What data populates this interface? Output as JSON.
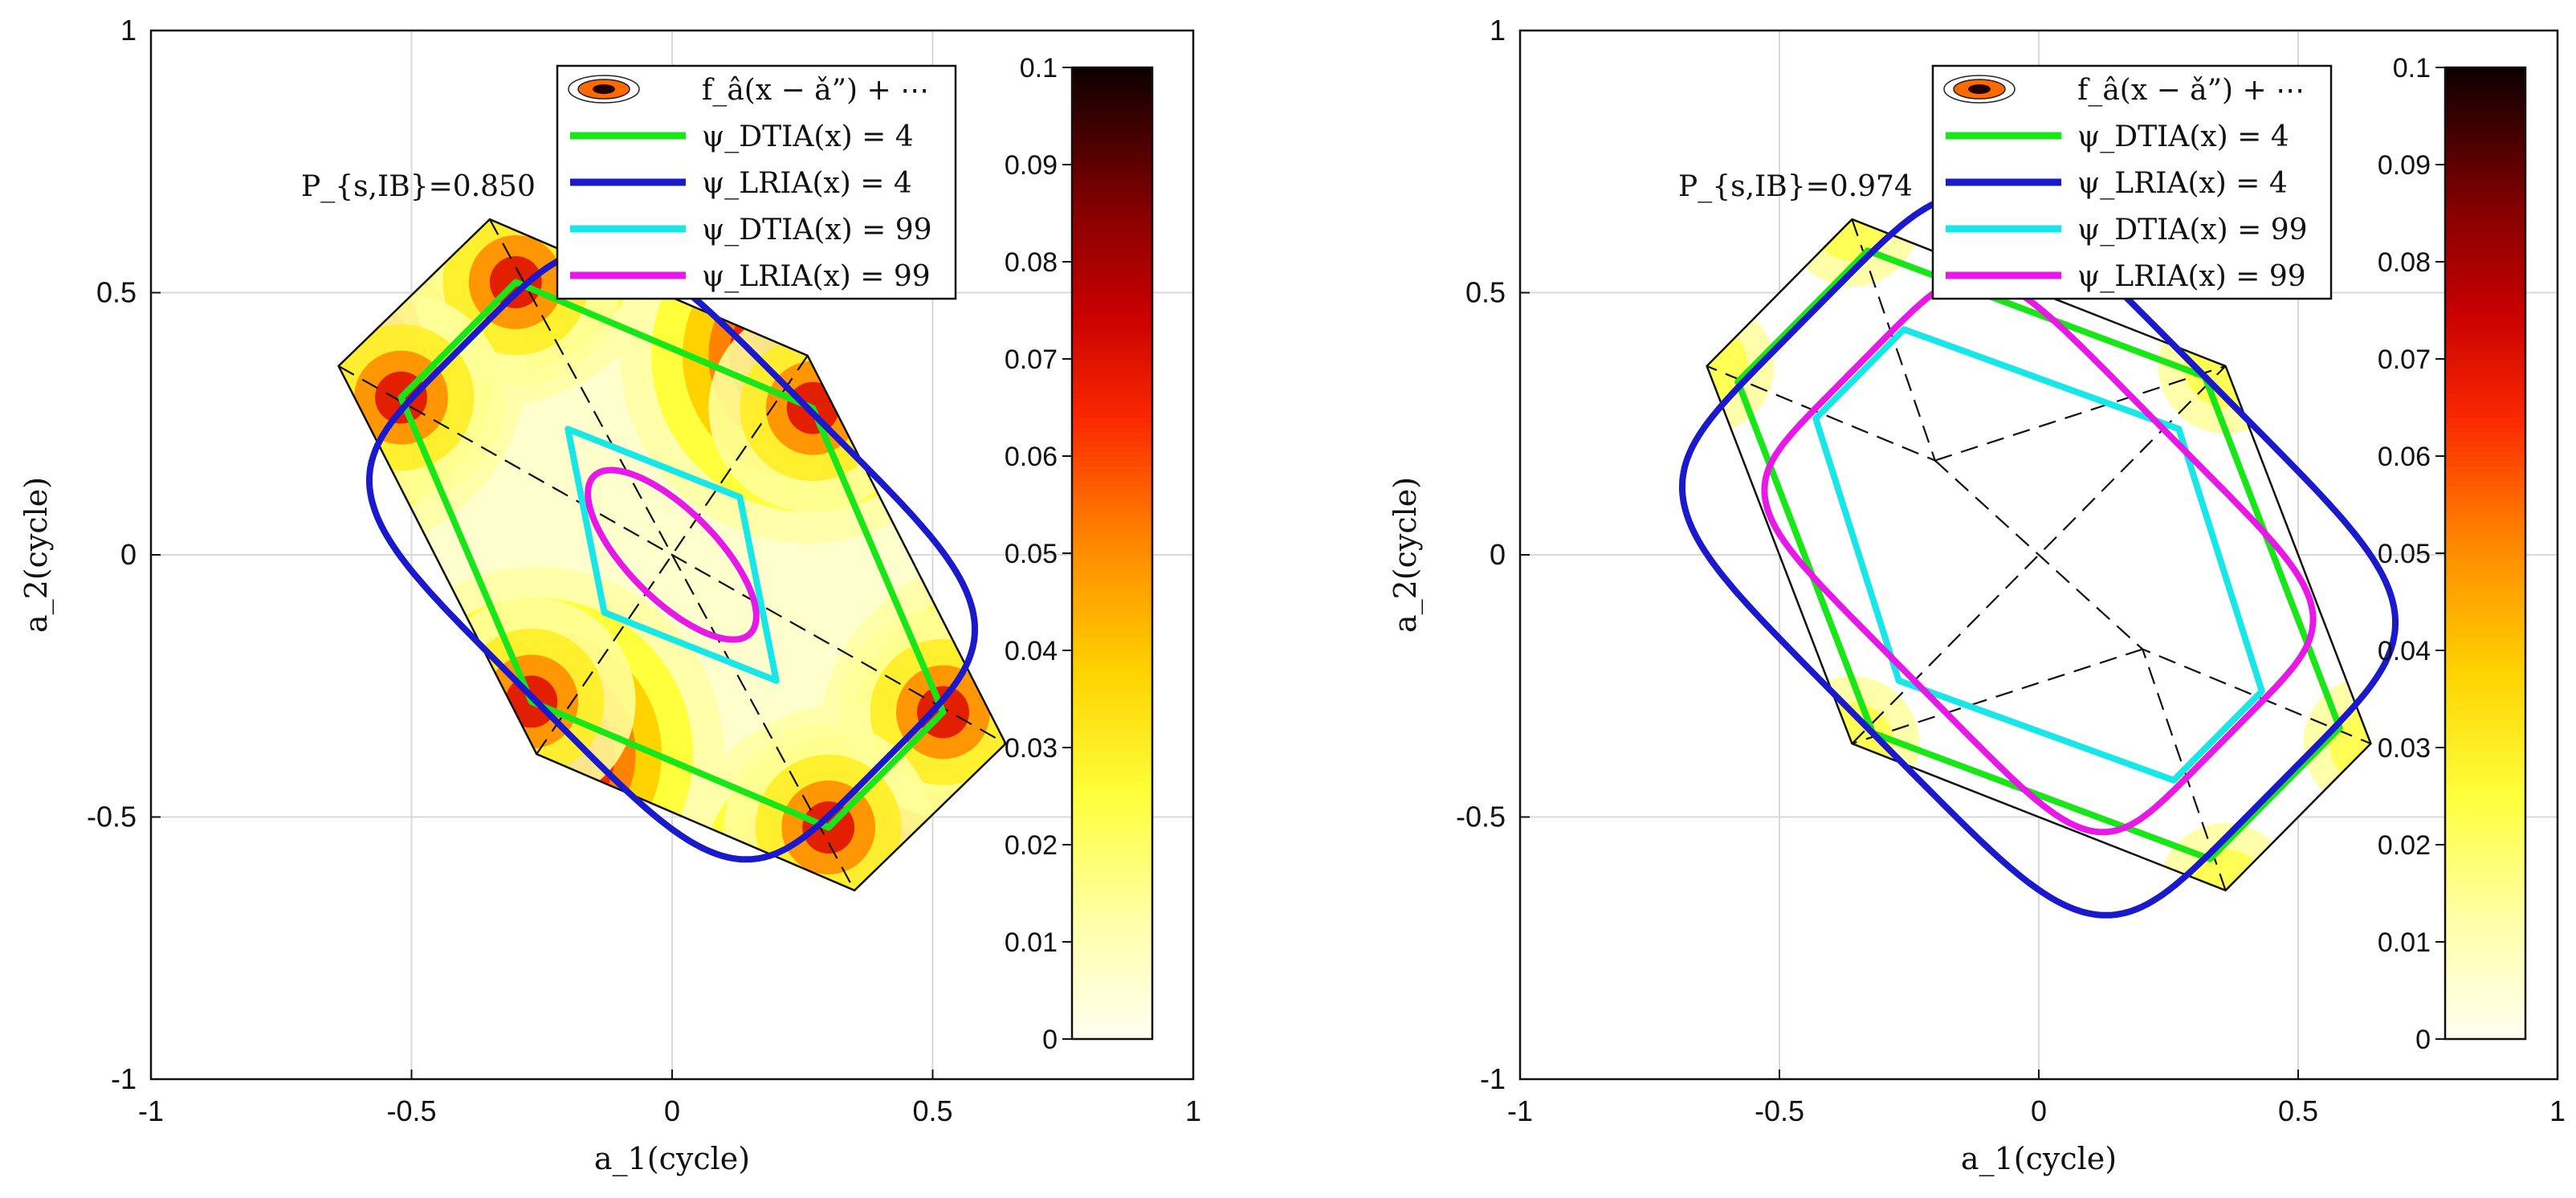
{
  "chart_data": [
    {
      "type": "contour",
      "annotation": "P_{s,IB}=0.850",
      "xlabel": "a_1(cycle)",
      "ylabel": "a_2(cycle)",
      "xlim": [
        -1,
        1
      ],
      "ylim": [
        -1,
        1
      ],
      "xticks": [
        "-1",
        "-0.5",
        "0",
        "0.5",
        "1"
      ],
      "yticks": [
        "-1",
        "-0.5",
        "0",
        "0.5",
        "1"
      ],
      "grid": true,
      "colorbar": {
        "min": 0,
        "max": 0.1,
        "ticks": [
          "0",
          "0.01",
          "0.02",
          "0.03",
          "0.04",
          "0.05",
          "0.06",
          "0.07",
          "0.08",
          "0.09",
          "0.1"
        ],
        "colormap": "hot-reversed"
      },
      "legend_placement": "top-right",
      "legend": [
        "f_â(x − ǎ”) + ⋯",
        "ψ_DTIA(x) = 4",
        "ψ_LRIA(x) = 4",
        "ψ_DTIA(x) = 99",
        "ψ_LRIA(x) = 99"
      ],
      "cell": [
        [
          -0.35,
          0.64
        ],
        [
          0.26,
          0.38
        ],
        [
          0.64,
          -0.36
        ],
        [
          0.35,
          -0.64
        ],
        [
          -0.26,
          -0.38
        ],
        [
          -0.64,
          0.36
        ]
      ],
      "series": [
        {
          "name": "ψ_DTIA(x) = 4",
          "color": "#19e619",
          "points": [
            [
              -0.3,
              0.52
            ],
            [
              0.27,
              0.28
            ],
            [
              0.52,
              -0.3
            ],
            [
              0.3,
              -0.52
            ],
            [
              -0.27,
              -0.28
            ],
            [
              -0.52,
              0.3
            ]
          ]
        },
        {
          "name": "ψ_LRIA(x) = 4",
          "color": "#1a1acc",
          "shape": "rounded-box",
          "center": [
            0,
            0
          ],
          "u": [
            0.4,
            -0.4
          ],
          "v": [
            0.27,
            0.27
          ],
          "radius": 0.14
        },
        {
          "name": "ψ_DTIA(x) = 99",
          "color": "#19e6e6",
          "points": [
            [
              -0.2,
              0.24
            ],
            [
              0.13,
              0.11
            ],
            [
              0.2,
              -0.24
            ],
            [
              -0.13,
              -0.11
            ]
          ]
        },
        {
          "name": "ψ_LRIA(x) = 99",
          "color": "#e619e6",
          "shape": "ellipse",
          "center": [
            0,
            0
          ],
          "u": [
            0.15,
            -0.15
          ],
          "v": [
            0.06,
            0.06
          ]
        }
      ]
    },
    {
      "type": "contour",
      "annotation": "P_{s,IB}=0.974",
      "xlabel": "a_1(cycle)",
      "ylabel": "a_2(cycle)",
      "xlim": [
        -1,
        1
      ],
      "ylim": [
        -1,
        1
      ],
      "xticks": [
        "-1",
        "-0.5",
        "0",
        "0.5",
        "1"
      ],
      "yticks": [
        "-1",
        "-0.5",
        "0",
        "0.5",
        "1"
      ],
      "grid": true,
      "colorbar": {
        "min": 0,
        "max": 0.1,
        "ticks": [
          "0",
          "0.01",
          "0.02",
          "0.03",
          "0.04",
          "0.05",
          "0.06",
          "0.07",
          "0.08",
          "0.09",
          "0.1"
        ],
        "colormap": "hot-reversed"
      },
      "legend_placement": "top-right",
      "legend": [
        "f_â(x − ǎ”) + ⋯",
        "ψ_DTIA(x) = 4",
        "ψ_LRIA(x) = 4",
        "ψ_DTIA(x) = 99",
        "ψ_LRIA(x) = 99"
      ],
      "cell": [
        [
          -0.36,
          0.64
        ],
        [
          0.36,
          0.36
        ],
        [
          0.64,
          -0.36
        ],
        [
          0.36,
          -0.64
        ],
        [
          -0.36,
          -0.36
        ],
        [
          -0.64,
          0.36
        ]
      ],
      "series": [
        {
          "name": "ψ_DTIA(x) = 4",
          "color": "#19e619",
          "points": [
            [
              -0.33,
              0.58
            ],
            [
              0.32,
              0.34
            ],
            [
              0.58,
              -0.33
            ],
            [
              0.33,
              -0.58
            ],
            [
              -0.32,
              -0.34
            ],
            [
              -0.58,
              0.33
            ]
          ]
        },
        {
          "name": "ψ_LRIA(x) = 4",
          "color": "#1a1acc",
          "shape": "rounded-box",
          "center": [
            0,
            0
          ],
          "u": [
            0.45,
            -0.45
          ],
          "v": [
            0.33,
            0.33
          ],
          "radius": 0.11
        },
        {
          "name": "ψ_DTIA(x) = 99",
          "color": "#19e6e6",
          "points": [
            [
              -0.26,
              0.43
            ],
            [
              0.27,
              0.24
            ],
            [
              0.43,
              -0.26
            ],
            [
              0.26,
              -0.43
            ],
            [
              -0.27,
              -0.24
            ],
            [
              -0.43,
              0.26
            ]
          ]
        },
        {
          "name": "ψ_LRIA(x) = 99",
          "color": "#e619e6",
          "shape": "rounded-box",
          "center": [
            0,
            0
          ],
          "u": [
            0.355,
            -0.355
          ],
          "v": [
            0.24,
            0.24
          ],
          "radius": 0.1
        }
      ]
    }
  ]
}
